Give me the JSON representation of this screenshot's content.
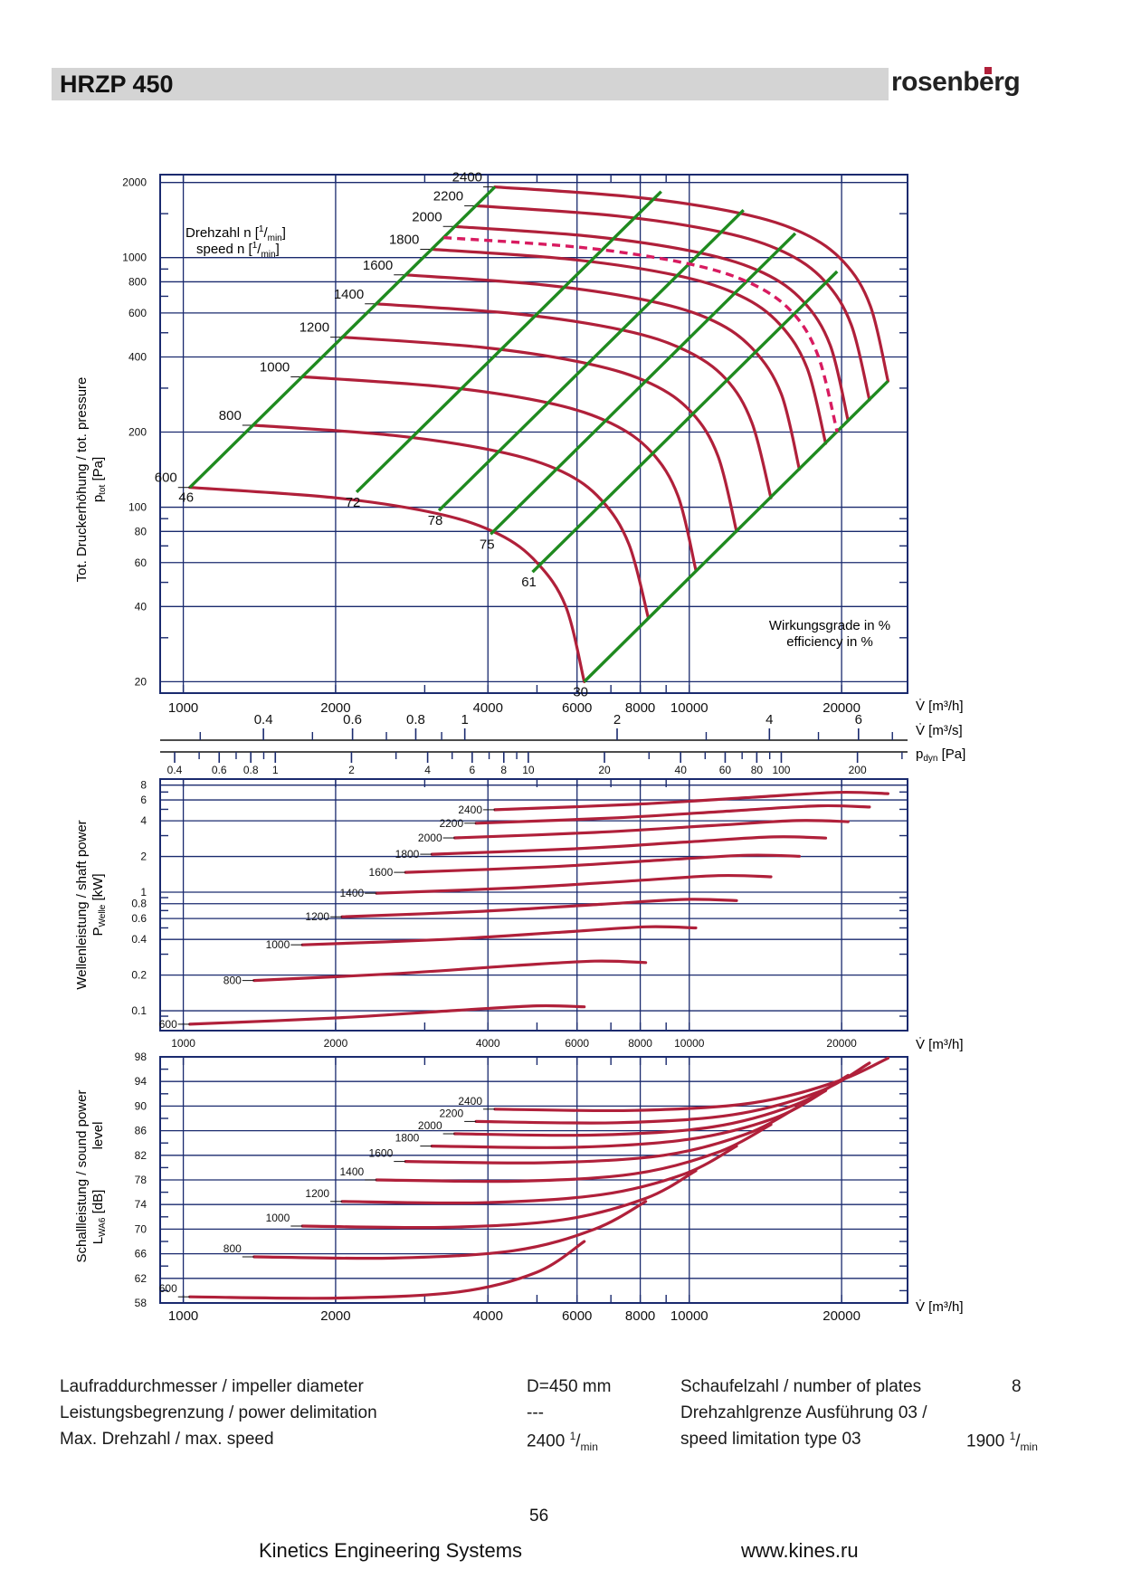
{
  "header": {
    "title": "HRZP 450",
    "logo_text": "rosenberg"
  },
  "colors": {
    "curve": "#b0203a",
    "efficiency_line": "#1f8a1f",
    "grid": "#1a2a6e",
    "title_bar": "#d4d4d4"
  },
  "labels": {
    "speed_legend_line1": "Drehzahl n",
    "speed_legend_line2": "speed n",
    "speed_unit_num": "1",
    "speed_unit_den": "min",
    "efficiency_line1": "Wirkungsgrade in %",
    "efficiency_line2": "efficiency in %",
    "y1_label_line1": "Tot. Druckerhöhung / tot. pressure",
    "y1_label_line2": "p",
    "y1_label_sub": "tot",
    "y1_label_unit": " [Pa]",
    "y2_label_line1": "Wellenleistung / shaft power",
    "y2_label_line2": "P",
    "y2_label_sub": "Welle",
    "y2_label_unit": " [kW]",
    "y3_label_line1": "Schallleistung / sound power",
    "y3_label_line1b": "level",
    "y3_label_line2": "L",
    "y3_label_sub": "WA6",
    "y3_label_unit": " [dB]",
    "x_flow_h": "V̇ [m³/h]",
    "x_flow_s": "V̇ [m³/s]",
    "x_pdyn": "p",
    "x_pdyn_sub": "dyn",
    "x_pdyn_unit": " [Pa]"
  },
  "chart_data": [
    {
      "type": "line",
      "title": "",
      "xlabel": "V̇ [m³/h]",
      "ylabel": "Tot. Druckerhöhung / tot. pressure p_tot [Pa]",
      "x_scale": "log",
      "y_scale": "log",
      "xlim": [
        900,
        27000
      ],
      "ylim": [
        18,
        2150
      ],
      "x_ticks": [
        1000,
        2000,
        4000,
        6000,
        8000,
        10000,
        20000
      ],
      "x_tick_labels": [
        "1000",
        "2000",
        "4000",
        "6000",
        "8000",
        "10000",
        "20000"
      ],
      "y_ticks": [
        20,
        40,
        60,
        80,
        100,
        200,
        400,
        600,
        800,
        1000,
        2000
      ],
      "y_tick_labels": [
        "20",
        "40",
        "60",
        "80",
        "100",
        "200",
        "400",
        "600",
        "800",
        "1000",
        "2000"
      ],
      "secondary_x_ms": {
        "values": [
          0.4,
          0.6,
          0.8,
          1,
          2,
          4,
          6
        ],
        "labels": [
          "0.4",
          "0.6",
          "0.8",
          "1",
          "2",
          "4",
          "6"
        ]
      },
      "secondary_x_pdyn": {
        "values": [
          0.4,
          0.6,
          0.8,
          1,
          2,
          4,
          6,
          8,
          10,
          20,
          40,
          60,
          80,
          100,
          200
        ],
        "labels": [
          "0.4",
          "0.6",
          "0.8",
          "1",
          "2",
          "4",
          "6",
          "8",
          "10",
          "20",
          "40",
          "60",
          "80",
          "100",
          "200"
        ]
      },
      "series": [
        {
          "name": "600",
          "x": [
            1030,
            2000,
            3200,
            4200,
            5000,
            5700,
            6200
          ],
          "y": [
            120,
            109,
            94,
            78,
            60,
            40,
            20
          ]
        },
        {
          "name": "800",
          "x": [
            1380,
            2600,
            4200,
            5600,
            6700,
            7600,
            8300
          ],
          "y": [
            213,
            194,
            167,
            139,
            107,
            71,
            36
          ]
        },
        {
          "name": "1000",
          "x": [
            1720,
            3300,
            5300,
            7000,
            8400,
            9500,
            10300
          ],
          "y": [
            333,
            303,
            261,
            217,
            167,
            111,
            56
          ]
        },
        {
          "name": "1200",
          "x": [
            2060,
            3900,
            6300,
            8400,
            10100,
            11400,
            12400
          ],
          "y": [
            480,
            437,
            376,
            313,
            240,
            160,
            80
          ]
        },
        {
          "name": "1400",
          "x": [
            2410,
            4600,
            7400,
            9800,
            11800,
            13300,
            14500
          ],
          "y": [
            653,
            594,
            512,
            426,
            327,
            218,
            109
          ]
        },
        {
          "name": "1600",
          "x": [
            2750,
            5200,
            8400,
            11200,
            13400,
            15200,
            16500
          ],
          "y": [
            853,
            776,
            669,
            556,
            427,
            284,
            142
          ]
        },
        {
          "name": "1800",
          "x": [
            3100,
            5900,
            9500,
            12600,
            15100,
            17100,
            18600
          ],
          "y": [
            1080,
            982,
            846,
            704,
            540,
            360,
            180
          ]
        },
        {
          "name": "2000",
          "x": [
            3440,
            6500,
            10500,
            14000,
            16800,
            19000,
            20600
          ],
          "y": [
            1333,
            1213,
            1045,
            869,
            667,
            444,
            222
          ]
        },
        {
          "name": "2200",
          "x": [
            3790,
            7200,
            11600,
            15400,
            18500,
            20900,
            22700
          ],
          "y": [
            1613,
            1468,
            1264,
            1052,
            807,
            538,
            269
          ]
        },
        {
          "name": "2400",
          "x": [
            4130,
            7800,
            12600,
            16800,
            20200,
            22800,
            24700
          ],
          "y": [
            1920,
            1747,
            1505,
            1252,
            960,
            640,
            320
          ]
        }
      ],
      "speed_limit_curve": {
        "name": "1900",
        "x": [
          3270,
          6200,
          10000,
          13300,
          16000,
          18000,
          19600
        ],
        "y": [
          1203,
          1095,
          943,
          785,
          602,
          401,
          200
        ],
        "style": "dashed"
      },
      "efficiency_lines": [
        {
          "label": "46",
          "x": [
            1030,
            4130
          ],
          "y": [
            120,
            1920
          ]
        },
        {
          "label": "72",
          "x": [
            2200,
            8800
          ],
          "y": [
            115,
            1840
          ]
        },
        {
          "label": "78",
          "x": [
            3200,
            12800
          ],
          "y": [
            97,
            1550
          ]
        },
        {
          "label": "75",
          "x": [
            4050,
            16200
          ],
          "y": [
            78,
            1250
          ]
        },
        {
          "label": "61",
          "x": [
            4900,
            19600
          ],
          "y": [
            55,
            880
          ]
        },
        {
          "label": "30",
          "x": [
            6200,
            24700
          ],
          "y": [
            20,
            320
          ]
        }
      ]
    },
    {
      "type": "line",
      "title": "",
      "xlabel": "V̇ [m³/h]",
      "ylabel": "Wellenleistung / shaft power P_Welle [kW]",
      "x_scale": "log",
      "y_scale": "log",
      "xlim": [
        900,
        27000
      ],
      "ylim": [
        0.068,
        9
      ],
      "y_ticks": [
        0.1,
        0.2,
        0.4,
        0.6,
        0.8,
        1,
        2,
        4,
        6,
        8
      ],
      "y_tick_labels": [
        "0.1",
        "0.2",
        "0.4",
        "0.6",
        "0.8",
        "1",
        "2",
        "4",
        "6",
        "8"
      ],
      "x_ticks": [
        1000,
        2000,
        4000,
        6000,
        8000,
        10000,
        20000
      ],
      "x_tick_labels": [
        "1000",
        "2000",
        "4000",
        "6000",
        "8000",
        "10000",
        "20000"
      ],
      "series": [
        {
          "name": "600",
          "x": [
            1030,
            2000,
            3500,
            5000,
            6200
          ],
          "y": [
            0.077,
            0.087,
            0.101,
            0.11,
            0.108
          ]
        },
        {
          "name": "800",
          "x": [
            1380,
            2600,
            4500,
            6500,
            8200
          ],
          "y": [
            0.18,
            0.205,
            0.24,
            0.262,
            0.255
          ]
        },
        {
          "name": "1000",
          "x": [
            1720,
            3300,
            5600,
            8200,
            10300
          ],
          "y": [
            0.36,
            0.4,
            0.46,
            0.51,
            0.5
          ]
        },
        {
          "name": "1200",
          "x": [
            2060,
            3900,
            6700,
            9800,
            12400
          ],
          "y": [
            0.62,
            0.69,
            0.79,
            0.87,
            0.85
          ]
        },
        {
          "name": "1400",
          "x": [
            2410,
            4600,
            7800,
            11400,
            14500
          ],
          "y": [
            0.98,
            1.09,
            1.25,
            1.38,
            1.35
          ]
        },
        {
          "name": "1600",
          "x": [
            2750,
            5200,
            8900,
            13000,
            16500
          ],
          "y": [
            1.47,
            1.63,
            1.87,
            2.05,
            2.01
          ]
        },
        {
          "name": "1800",
          "x": [
            3100,
            5900,
            10000,
            14700,
            18600
          ],
          "y": [
            2.09,
            2.32,
            2.66,
            2.93,
            2.86
          ]
        },
        {
          "name": "2000",
          "x": [
            3440,
            6500,
            11100,
            16300,
            20600
          ],
          "y": [
            2.87,
            3.19,
            3.65,
            4.02,
            3.93
          ]
        },
        {
          "name": "2200",
          "x": [
            3790,
            7200,
            12200,
            18000,
            22700
          ],
          "y": [
            3.82,
            4.24,
            4.86,
            5.35,
            5.23
          ]
        },
        {
          "name": "2400",
          "x": [
            4130,
            7800,
            13300,
            19600,
            24700
          ],
          "y": [
            4.96,
            5.51,
            6.31,
            6.95,
            6.78
          ]
        }
      ]
    },
    {
      "type": "line",
      "title": "",
      "xlabel": "V̇ [m³/h]",
      "ylabel": "Schallleistung / sound power level L_WA6 [dB]",
      "x_scale": "log",
      "y_scale": "linear",
      "xlim": [
        900,
        27000
      ],
      "ylim": [
        58,
        98
      ],
      "y_ticks": [
        58,
        62,
        66,
        70,
        74,
        78,
        82,
        86,
        90,
        94,
        98
      ],
      "y_tick_labels": [
        "58",
        "62",
        "66",
        "70",
        "74",
        "78",
        "82",
        "86",
        "90",
        "94",
        "98"
      ],
      "x_ticks": [
        1000,
        2000,
        4000,
        6000,
        8000,
        10000,
        20000
      ],
      "x_tick_labels": [
        "1000",
        "2000",
        "4000",
        "6000",
        "8000",
        "10000",
        "20000"
      ],
      "series": [
        {
          "name": "600",
          "x": [
            1030,
            2000,
            3500,
            5000,
            6200
          ],
          "y": [
            59,
            58.8,
            59.8,
            63,
            68
          ]
        },
        {
          "name": "800",
          "x": [
            1380,
            2600,
            4500,
            6500,
            8200
          ],
          "y": [
            65.5,
            65.3,
            66.5,
            70,
            74.5
          ]
        },
        {
          "name": "1000",
          "x": [
            1720,
            3300,
            5600,
            8200,
            10300
          ],
          "y": [
            70.5,
            70.3,
            71.5,
            75,
            79.5
          ]
        },
        {
          "name": "1200",
          "x": [
            2060,
            3900,
            6700,
            9800,
            12400
          ],
          "y": [
            74.5,
            74.3,
            75.6,
            79,
            83.5
          ]
        },
        {
          "name": "1400",
          "x": [
            2410,
            4600,
            7800,
            11400,
            14500
          ],
          "y": [
            78,
            77.8,
            79,
            82.5,
            87
          ]
        },
        {
          "name": "1600",
          "x": [
            2750,
            5200,
            8900,
            13000,
            16500
          ],
          "y": [
            81,
            80.8,
            82,
            85.5,
            90
          ]
        },
        {
          "name": "1800",
          "x": [
            3100,
            5900,
            10000,
            14700,
            18600
          ],
          "y": [
            83.5,
            83.3,
            84.6,
            88,
            92.5
          ]
        },
        {
          "name": "2000",
          "x": [
            3440,
            6500,
            11100,
            16300,
            20600
          ],
          "y": [
            85.5,
            85.3,
            86.6,
            90.3,
            95
          ]
        },
        {
          "name": "2200",
          "x": [
            3790,
            7200,
            12200,
            18000,
            22700
          ],
          "y": [
            87.5,
            87.3,
            88.6,
            92.3,
            97
          ]
        },
        {
          "name": "2400",
          "x": [
            4130,
            7800,
            13300,
            19600,
            24700
          ],
          "y": [
            89.5,
            89.3,
            90.5,
            94,
            97.8
          ]
        }
      ]
    }
  ],
  "specs": {
    "impeller_label": "Laufraddurchmesser / impeller diameter",
    "impeller_value": "D=450 mm",
    "power_label": "Leistungsbegrenzung / power delimitation",
    "power_value": "---",
    "maxspeed_label": "Max. Drehzahl / max. speed",
    "maxspeed_value": "2400",
    "blades_label": "Schaufelzahl / number of plates",
    "blades_value": "8",
    "speedlimit_label_1": "Drehzahlgrenze Ausführung 03 /",
    "speedlimit_label_2": "speed limitation type 03",
    "speedlimit_value": "1900",
    "unit_num": "1",
    "unit_den": "min"
  },
  "footer": {
    "page": "56",
    "company": "Kinetics Engineering Systems",
    "website": "www.kines.ru"
  }
}
